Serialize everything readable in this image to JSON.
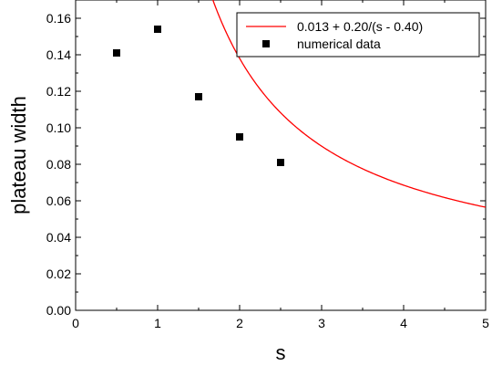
{
  "chart_data": {
    "type": "scatter",
    "title": "",
    "xlabel": "s",
    "ylabel": "plateau width",
    "xlim": [
      0,
      5
    ],
    "ylim": [
      0,
      0.17
    ],
    "xticks": [
      0,
      1,
      2,
      3,
      4,
      5
    ],
    "yticks": [
      0.0,
      0.02,
      0.04,
      0.06,
      0.08,
      0.1,
      0.12,
      0.14,
      0.16
    ],
    "xtick_labels": [
      "0",
      "1",
      "2",
      "3",
      "4",
      "5"
    ],
    "ytick_labels": [
      "0.00",
      "0.02",
      "0.04",
      "0.06",
      "0.08",
      "0.10",
      "0.12",
      "0.14",
      "0.16"
    ],
    "grid": false,
    "legend_position": "top-right",
    "series": [
      {
        "name": "0.013 + 0.20/(s - 0.40)",
        "kind": "line",
        "color": "#ff0000",
        "formula": {
          "a": 0.013,
          "b": 0.2,
          "c": 0.4
        },
        "x_range": [
          0.85,
          5
        ]
      },
      {
        "name": "numerical data",
        "kind": "scatter",
        "color": "#000000",
        "marker": "square",
        "x": [
          0.5,
          1.0,
          1.5,
          2.0,
          2.5
        ],
        "y": [
          0.141,
          0.154,
          0.117,
          0.095,
          0.081
        ]
      }
    ]
  }
}
